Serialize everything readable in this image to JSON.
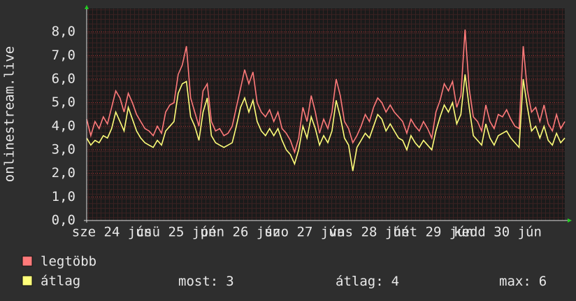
{
  "chart_data": {
    "type": "line",
    "ylabel": "onlinestream.live",
    "x_labels": [
      "sze 24 jún",
      "csü 25 jún",
      "pén 26 jún",
      "szo 27 jún",
      "vas 28 jún",
      "hét 29 jún",
      "kedd 30 jún"
    ],
    "ylim": [
      0,
      9
    ],
    "yticks": [
      {
        "value": 0,
        "label": "0,0"
      },
      {
        "value": 1,
        "label": "1,0"
      },
      {
        "value": 2,
        "label": "2,0"
      },
      {
        "value": 3,
        "label": "3,0"
      },
      {
        "value": 4,
        "label": "4,0"
      },
      {
        "value": 5,
        "label": "5,0"
      },
      {
        "value": 6,
        "label": "6,0"
      },
      {
        "value": 7,
        "label": "7,0"
      },
      {
        "value": 8,
        "label": "8,0"
      }
    ],
    "grid": true,
    "series": [
      {
        "name": "legtöbb",
        "color": "#ff7a7a",
        "values": [
          4.3,
          3.6,
          4.2,
          3.9,
          4.4,
          4.1,
          4.8,
          5.5,
          5.2,
          4.6,
          5.4,
          5.0,
          4.5,
          4.2,
          3.9,
          3.8,
          3.6,
          4.0,
          3.7,
          4.6,
          4.9,
          5.0,
          6.2,
          6.6,
          7.4,
          5.2,
          4.6,
          4.0,
          5.5,
          5.8,
          4.2,
          3.8,
          3.9,
          3.6,
          3.7,
          4.0,
          4.8,
          5.6,
          6.4,
          5.8,
          6.3,
          5.0,
          4.6,
          4.4,
          4.7,
          4.2,
          4.6,
          3.9,
          3.7,
          3.4,
          2.9,
          3.5,
          4.8,
          4.2,
          5.3,
          4.6,
          3.7,
          4.3,
          3.9,
          4.6,
          6.0,
          5.3,
          4.2,
          3.9,
          3.3,
          3.6,
          4.0,
          4.5,
          4.2,
          4.8,
          5.2,
          5.0,
          4.6,
          4.9,
          4.6,
          4.4,
          4.2,
          3.7,
          4.3,
          4.0,
          3.8,
          4.2,
          3.9,
          3.5,
          4.6,
          5.1,
          5.8,
          5.5,
          5.9,
          4.8,
          5.3,
          8.1,
          5.6,
          4.4,
          4.2,
          3.8,
          4.9,
          4.2,
          3.9,
          4.5,
          4.4,
          4.7,
          4.3,
          4.0,
          3.9,
          7.4,
          5.5,
          4.6,
          4.8,
          4.2,
          4.9,
          4.1,
          3.8,
          4.5,
          3.9,
          4.2
        ]
      },
      {
        "name": "átlag",
        "color": "#ffff7a",
        "values": [
          3.5,
          3.2,
          3.4,
          3.3,
          3.6,
          3.5,
          3.9,
          4.6,
          4.2,
          3.8,
          4.8,
          4.3,
          3.8,
          3.5,
          3.3,
          3.2,
          3.1,
          3.4,
          3.2,
          3.8,
          4.0,
          4.2,
          5.4,
          5.8,
          5.9,
          4.4,
          4.0,
          3.4,
          4.6,
          5.2,
          3.6,
          3.3,
          3.2,
          3.1,
          3.2,
          3.3,
          4.0,
          4.8,
          5.2,
          4.6,
          5.1,
          4.2,
          3.8,
          3.6,
          3.9,
          3.6,
          3.9,
          3.4,
          3.0,
          2.8,
          2.4,
          3.0,
          4.0,
          3.5,
          4.4,
          3.9,
          3.2,
          3.6,
          3.3,
          3.8,
          5.1,
          4.4,
          3.5,
          3.2,
          2.1,
          3.1,
          3.4,
          3.7,
          3.5,
          4.0,
          4.5,
          4.3,
          3.8,
          4.1,
          3.8,
          3.5,
          3.4,
          3.0,
          3.6,
          3.3,
          3.1,
          3.4,
          3.2,
          3.0,
          3.8,
          4.4,
          4.9,
          4.6,
          5.0,
          4.1,
          4.5,
          6.2,
          4.8,
          3.6,
          3.4,
          3.2,
          4.1,
          3.5,
          3.2,
          3.6,
          3.7,
          3.8,
          3.5,
          3.3,
          3.1,
          6.0,
          4.8,
          3.8,
          4.0,
          3.5,
          4.0,
          3.4,
          3.2,
          3.7,
          3.3,
          3.5
        ]
      }
    ],
    "stats": [
      {
        "label": "most:",
        "value": 3
      },
      {
        "label": "átlag:",
        "value": 4
      },
      {
        "label": "max:",
        "value": 6
      }
    ]
  }
}
